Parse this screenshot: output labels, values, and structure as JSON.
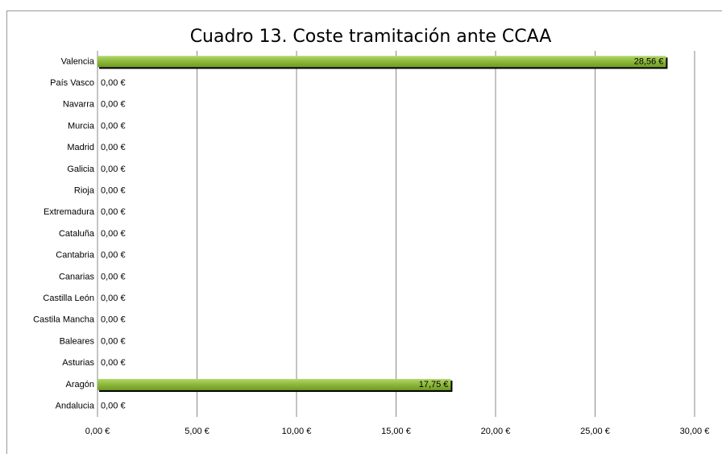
{
  "chart_data": {
    "type": "bar",
    "orientation": "horizontal",
    "title": "Cuadro 13. Coste tramitación ante CCAA",
    "categories": [
      "Valencia",
      "País Vasco",
      "Navarra",
      "Murcia",
      "Madrid",
      "Galicia",
      "Rioja",
      "Extremadura",
      "Cataluña",
      "Cantabria",
      "Canarias",
      "Castilla León",
      "Castila Mancha",
      "Baleares",
      "Asturias",
      "Aragón",
      "Andalucia"
    ],
    "values": [
      28.56,
      0,
      0,
      0,
      0,
      0,
      0,
      0,
      0,
      0,
      0,
      0,
      0,
      0,
      0,
      17.75,
      0
    ],
    "value_labels": [
      "28,56 €",
      "0,00 €",
      "0,00 €",
      "0,00 €",
      "0,00 €",
      "0,00 €",
      "0,00 €",
      "0,00 €",
      "0,00 €",
      "0,00 €",
      "0,00 €",
      "0,00 €",
      "0,00 €",
      "0,00 €",
      "0,00 €",
      "17,75 €",
      "0,00 €"
    ],
    "color": "#8cb83a",
    "xlim": [
      0,
      30
    ],
    "xticks": [
      {
        "value": 0,
        "label": "0,00 €"
      },
      {
        "value": 5,
        "label": "5,00 €"
      },
      {
        "value": 10,
        "label": "10,00 €"
      },
      {
        "value": 15,
        "label": "15,00 €"
      },
      {
        "value": 20,
        "label": "20,00 €"
      },
      {
        "value": 25,
        "label": "25,00 €"
      },
      {
        "value": 30,
        "label": "30,00 €"
      }
    ],
    "grid": true
  }
}
